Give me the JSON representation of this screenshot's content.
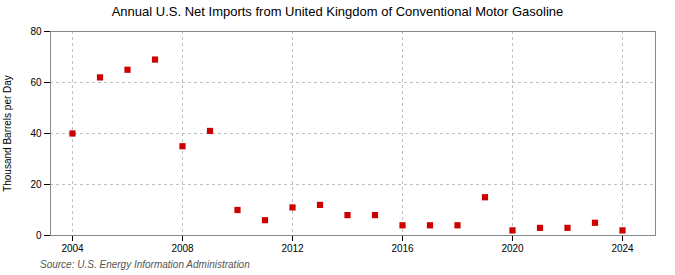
{
  "chart_data": {
    "type": "scatter",
    "title": "Annual U.S. Net Imports from United Kingdom of Conventional Motor Gasoline",
    "ylabel": "Thousand Barrels per Day",
    "source": "Source: U.S. Energy Information Administration",
    "x": [
      2004,
      2005,
      2006,
      2007,
      2008,
      2009,
      2010,
      2011,
      2012,
      2013,
      2014,
      2015,
      2016,
      2017,
      2018,
      2019,
      2020,
      2021,
      2022,
      2023,
      2024
    ],
    "values": [
      40,
      62,
      65,
      69,
      35,
      41,
      10,
      6,
      11,
      12,
      8,
      8,
      4,
      4,
      4,
      15,
      2,
      3,
      3,
      5,
      2
    ],
    "color": "#cc0000",
    "marker": "square",
    "xlim": [
      2003.2,
      2025.2
    ],
    "xticks": [
      2004,
      2008,
      2012,
      2016,
      2020,
      2024
    ],
    "ylim": [
      0,
      80
    ],
    "yticks": [
      0,
      20,
      40,
      60,
      80
    ],
    "grid": true
  }
}
